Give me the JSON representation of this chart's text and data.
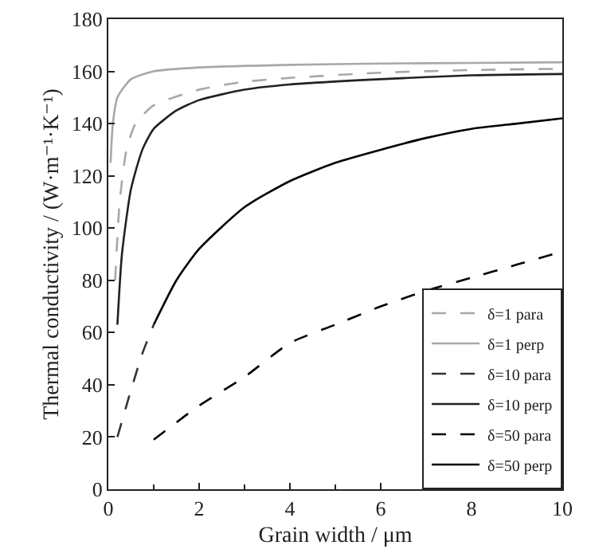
{
  "chart_data": {
    "type": "line",
    "xlabel": "Grain width / μm",
    "ylabel": "Thermal conductivity / (W·m⁻¹·K⁻¹)",
    "xlim": [
      0,
      10
    ],
    "xticks": [
      0,
      2,
      4,
      6,
      8,
      10
    ],
    "ylim": [
      0,
      180
    ],
    "yticks": [
      0,
      20,
      40,
      60,
      80,
      100,
      120,
      140,
      160,
      180
    ],
    "grid": false,
    "legend": "bottom right",
    "marker": "none",
    "series": [
      {
        "name": "δ=1 para",
        "color": "#a8a8a8",
        "line_style": "dashed",
        "x": [
          0.15,
          0.25,
          0.4,
          0.6,
          1,
          2,
          3,
          4,
          6,
          8,
          10
        ],
        "values": [
          80,
          110,
          130,
          140,
          147,
          153,
          156,
          157.5,
          159.5,
          160.5,
          161
        ]
      },
      {
        "name": "δ=1 perp",
        "color": "#a8a8a8",
        "line_style": "solid",
        "x": [
          0.05,
          0.1,
          0.2,
          0.5,
          1,
          2,
          4,
          6,
          8,
          10
        ],
        "values": [
          125,
          140,
          150,
          157,
          160,
          161.5,
          162.5,
          163,
          163.2,
          163.5
        ]
      },
      {
        "name": "δ=10 para",
        "color": "#333333",
        "line_style": "dashed",
        "x": [
          0.2,
          0.5,
          0.75,
          1
        ],
        "values": [
          20,
          38,
          52,
          63
        ]
      },
      {
        "name": "δ=10 perp",
        "color": "#222222",
        "line_style": "solid",
        "x": [
          0.2,
          0.3,
          0.5,
          0.75,
          1,
          1.5,
          2,
          3,
          4,
          6,
          8,
          10
        ],
        "values": [
          63,
          90,
          115,
          130,
          138,
          145,
          149,
          153,
          155,
          157,
          158.5,
          159
        ]
      },
      {
        "name": "δ=50 para",
        "color": "#000000",
        "line_style": "dashed",
        "x": [
          1,
          2,
          3,
          4,
          5,
          6,
          7,
          8,
          9,
          10
        ],
        "values": [
          19,
          32,
          43,
          56,
          63,
          70,
          76,
          81,
          86,
          91
        ]
      },
      {
        "name": "δ=50 perp",
        "color": "#000000",
        "line_style": "solid",
        "x": [
          1,
          1.5,
          2,
          3,
          4,
          5,
          6,
          7,
          8,
          9,
          10
        ],
        "values": [
          63,
          80,
          92,
          108,
          118,
          125,
          130,
          134.5,
          138,
          140,
          142
        ]
      }
    ]
  }
}
